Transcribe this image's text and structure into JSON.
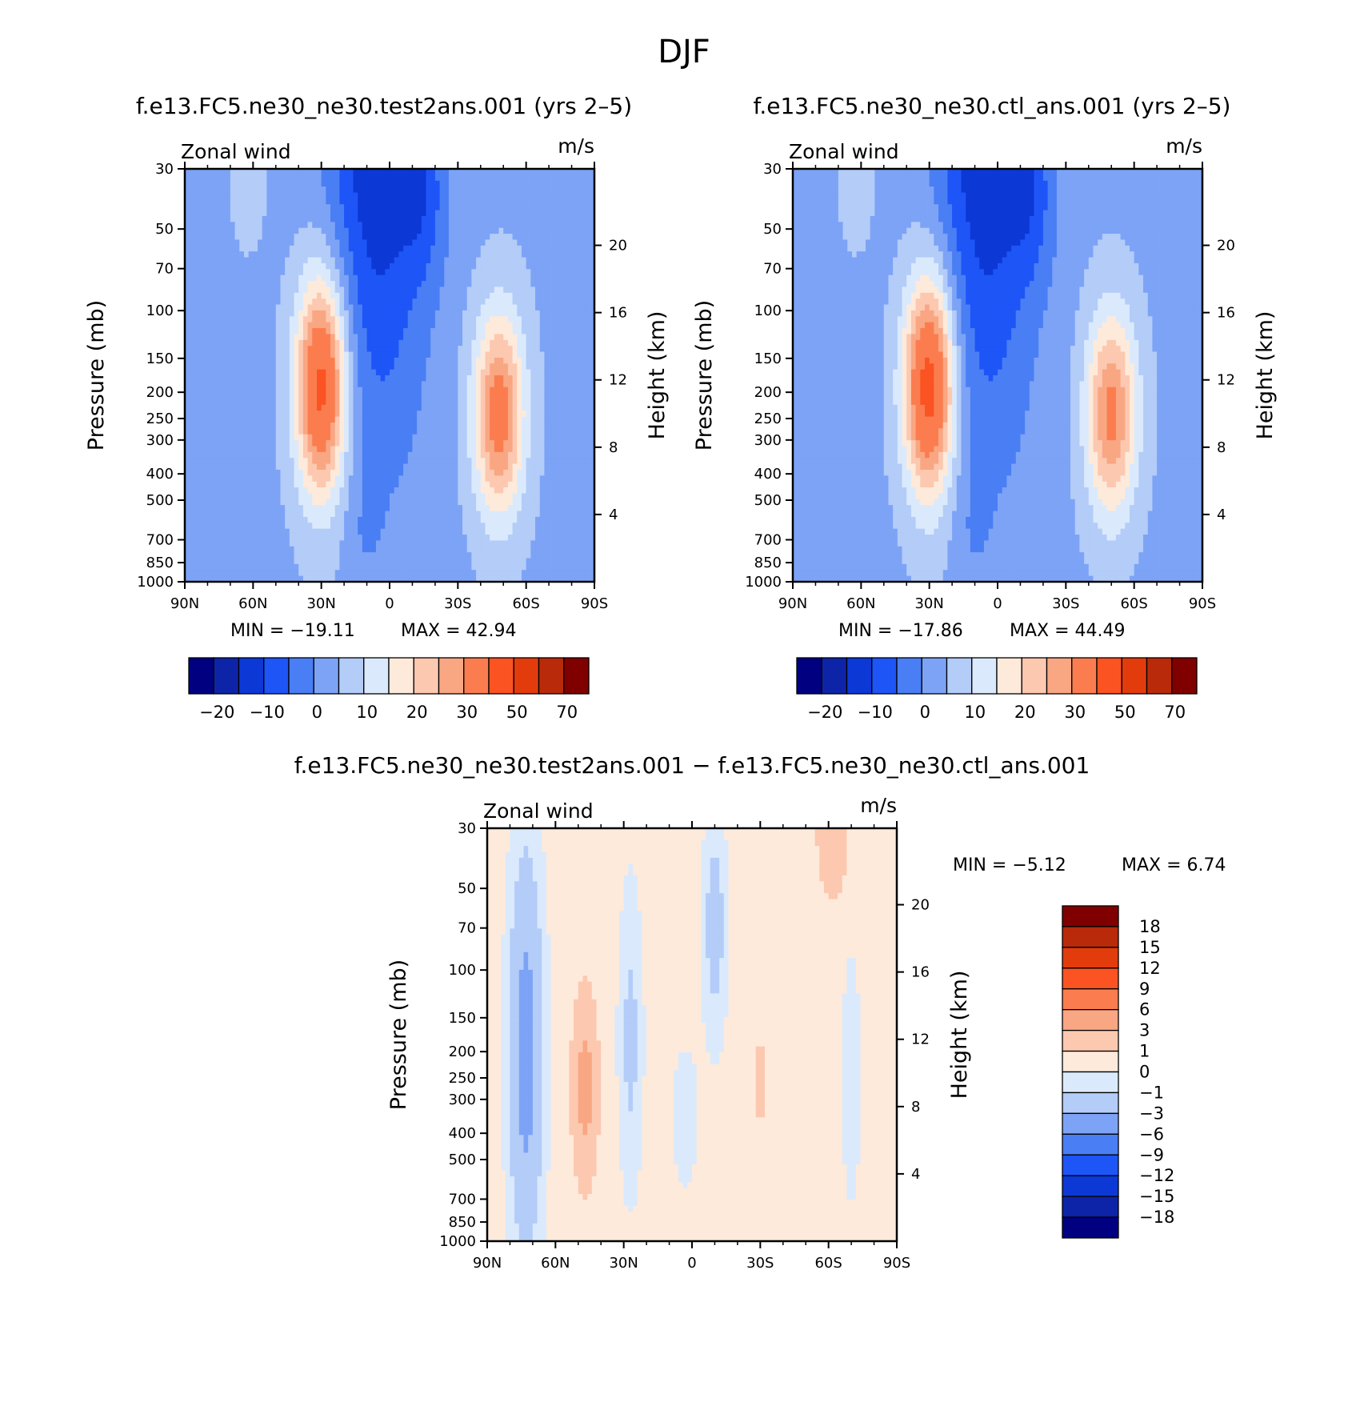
{
  "figure_title": "DJF",
  "chart_data": [
    {
      "type": "heatmap",
      "id": "panel-test",
      "title": "f.e13.FC5.ne30_ne30.test2ans.001 (yrs 2–5)",
      "variable_label": "Zonal wind",
      "units_label": "m/s",
      "ylabel": "Pressure (mb)",
      "ylabel_right": "Height (km)",
      "x_tick_labels": [
        "90N",
        "60N",
        "30N",
        "0",
        "30S",
        "60S",
        "90S"
      ],
      "x_tick_values": [
        90,
        60,
        30,
        0,
        -30,
        -60,
        -90
      ],
      "xlim": [
        90,
        -90
      ],
      "y_tick_labels": [
        "30",
        "50",
        "70",
        "100",
        "150",
        "200",
        "250",
        "300",
        "400",
        "500",
        "700",
        "850",
        "1000"
      ],
      "y_tick_values": [
        30,
        50,
        70,
        100,
        150,
        200,
        250,
        300,
        400,
        500,
        700,
        850,
        1000
      ],
      "ylim": [
        1000,
        30
      ],
      "y_right_tick_labels": [
        "20",
        "16",
        "12",
        "8",
        "4"
      ],
      "y_right_tick_values": [
        20,
        16,
        12,
        8,
        4
      ],
      "min_label": "MIN = −19.11",
      "max_label": "MAX = 42.94",
      "min": -19.11,
      "max": 42.94,
      "colorbar": {
        "orientation": "horizontal",
        "levels": [
          -25,
          -20,
          -15,
          -10,
          -5,
          0,
          5,
          10,
          15,
          20,
          25,
          30,
          40,
          50,
          60,
          70
        ],
        "labels": [
          "−20",
          "−10",
          "0",
          "10",
          "20",
          "30",
          "50",
          "70"
        ],
        "colors": [
          "#000080",
          "#0d24a8",
          "#0c38d6",
          "#1e55f7",
          "#4a7ef4",
          "#7da3f6",
          "#b3ccf8",
          "#daeafc",
          "#feeadb",
          "#fcc8b0",
          "#f9a683",
          "#fb7d4f",
          "#fb5322",
          "#e23c0c",
          "#b82a0a",
          "#800000"
        ]
      },
      "jets": [
        {
          "lat": 30,
          "p": 190,
          "peak": 42.94,
          "wlat": 11,
          "wlnp": 0.92
        },
        {
          "lat": -48,
          "p": 240,
          "peak": 33,
          "wlat": 11,
          "wlnp": 0.85
        }
      ]
    },
    {
      "type": "heatmap",
      "id": "panel-ctl",
      "title": "f.e13.FC5.ne30_ne30.ctl_ans.001 (yrs 2–5)",
      "variable_label": "Zonal wind",
      "units_label": "m/s",
      "ylabel": "Pressure (mb)",
      "ylabel_right": "Height (km)",
      "x_tick_labels": [
        "90N",
        "60N",
        "30N",
        "0",
        "30S",
        "60S",
        "90S"
      ],
      "x_tick_values": [
        90,
        60,
        30,
        0,
        -30,
        -60,
        -90
      ],
      "xlim": [
        90,
        -90
      ],
      "y_tick_labels": [
        "30",
        "50",
        "70",
        "100",
        "150",
        "200",
        "250",
        "300",
        "400",
        "500",
        "700",
        "850",
        "1000"
      ],
      "y_tick_values": [
        30,
        50,
        70,
        100,
        150,
        200,
        250,
        300,
        400,
        500,
        700,
        850,
        1000
      ],
      "ylim": [
        1000,
        30
      ],
      "y_right_tick_labels": [
        "20",
        "16",
        "12",
        "8",
        "4"
      ],
      "y_right_tick_values": [
        20,
        16,
        12,
        8,
        4
      ],
      "min_label": "MIN = −17.86",
      "max_label": "MAX = 44.49",
      "min": -17.86,
      "max": 44.49,
      "colorbar": {
        "orientation": "horizontal",
        "levels": [
          -25,
          -20,
          -15,
          -10,
          -5,
          0,
          5,
          10,
          15,
          20,
          25,
          30,
          40,
          50,
          60,
          70
        ],
        "labels": [
          "−20",
          "−10",
          "0",
          "10",
          "20",
          "30",
          "50",
          "70"
        ],
        "colors": [
          "#000080",
          "#0d24a8",
          "#0c38d6",
          "#1e55f7",
          "#4a7ef4",
          "#7da3f6",
          "#b3ccf8",
          "#daeafc",
          "#feeadb",
          "#fcc8b0",
          "#f9a683",
          "#fb7d4f",
          "#fb5322",
          "#e23c0c",
          "#b82a0a",
          "#800000"
        ]
      },
      "jets": [
        {
          "lat": 30,
          "p": 190,
          "peak": 44.49,
          "wlat": 11,
          "wlnp": 0.92
        },
        {
          "lat": -50,
          "p": 240,
          "peak": 31,
          "wlat": 11,
          "wlnp": 0.85
        }
      ]
    },
    {
      "type": "heatmap",
      "id": "panel-diff",
      "title": "f.e13.FC5.ne30_ne30.test2ans.001 − f.e13.FC5.ne30_ne30.ctl_ans.001",
      "variable_label": "Zonal wind",
      "units_label": "m/s",
      "ylabel": "Pressure (mb)",
      "ylabel_right": "Height (km)",
      "x_tick_labels": [
        "90N",
        "60N",
        "30N",
        "0",
        "30S",
        "60S",
        "90S"
      ],
      "x_tick_values": [
        90,
        60,
        30,
        0,
        -30,
        -60,
        -90
      ],
      "xlim": [
        90,
        -90
      ],
      "y_tick_labels": [
        "30",
        "50",
        "70",
        "100",
        "150",
        "200",
        "250",
        "300",
        "400",
        "500",
        "700",
        "850",
        "1000"
      ],
      "y_tick_values": [
        30,
        50,
        70,
        100,
        150,
        200,
        250,
        300,
        400,
        500,
        700,
        850,
        1000
      ],
      "ylim": [
        1000,
        30
      ],
      "y_right_tick_labels": [
        "20",
        "16",
        "12",
        "8",
        "4"
      ],
      "y_right_tick_values": [
        20,
        16,
        12,
        8,
        4
      ],
      "min_label": "MIN = −5.12",
      "max_label": "MAX = 6.74",
      "min": -5.12,
      "max": 6.74,
      "colorbar": {
        "orientation": "vertical",
        "levels": [
          -21,
          -18,
          -15,
          -12,
          -9,
          -6,
          -3,
          -1,
          0,
          1,
          3,
          6,
          9,
          12,
          15,
          18,
          21
        ],
        "labels": [
          "18",
          "15",
          "12",
          "9",
          "6",
          "3",
          "1",
          "0",
          "−1",
          "−3",
          "−6",
          "−9",
          "−12",
          "−15",
          "−18"
        ],
        "colors": [
          "#000080",
          "#0d24a8",
          "#0c38d6",
          "#1e55f7",
          "#4a7ef4",
          "#7da3f6",
          "#b3ccf8",
          "#daeafc",
          "#feeadb",
          "#fcc8b0",
          "#f9a683",
          "#fb7d4f",
          "#fb5322",
          "#e23c0c",
          "#b82a0a",
          "#800000"
        ]
      }
    }
  ]
}
